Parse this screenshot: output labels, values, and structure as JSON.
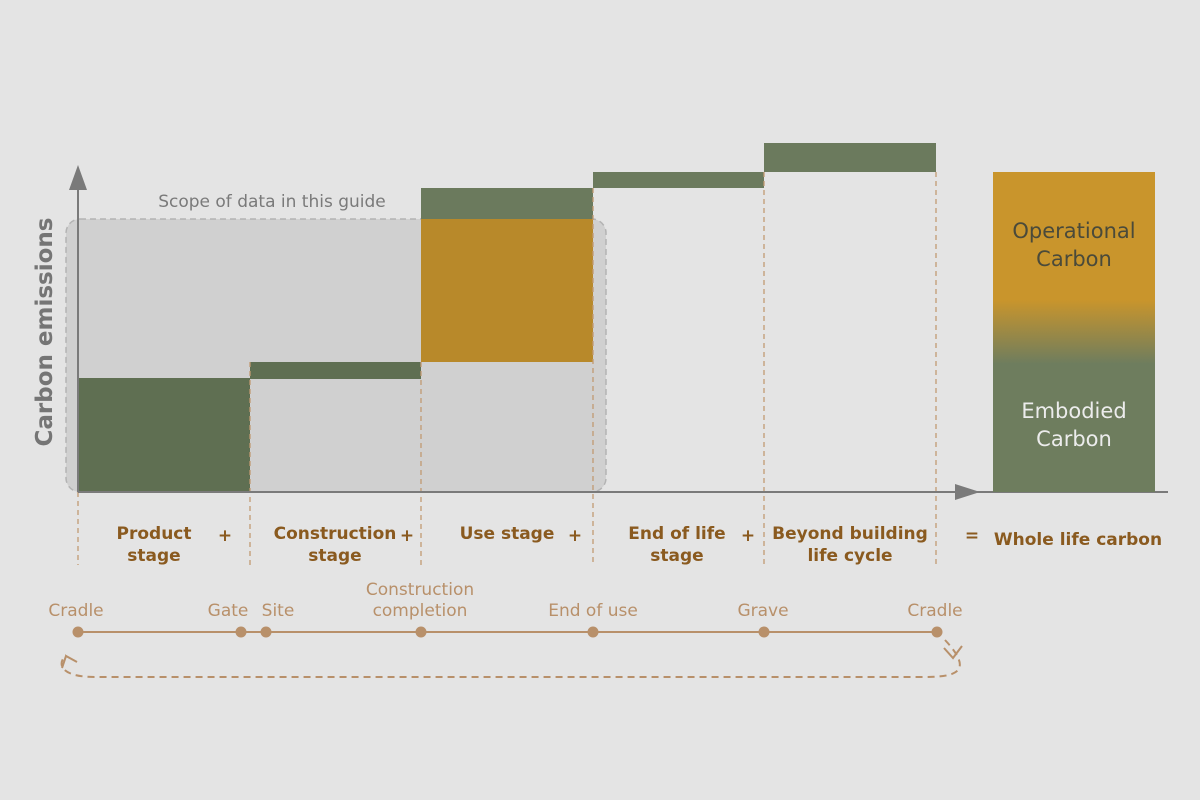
{
  "diagram": {
    "y_axis_label": "Carbon emissions",
    "scope_label": "Scope of data in this guide",
    "stages": [
      {
        "line1": "Product",
        "line2": "stage",
        "operator": "+"
      },
      {
        "line1": "Construction",
        "line2": "stage",
        "operator": "+"
      },
      {
        "line1": "Use stage",
        "line2": "",
        "operator": "+"
      },
      {
        "line1": "End of life",
        "line2": "stage",
        "operator": "+"
      },
      {
        "line1": "Beyond building",
        "line2": "life cycle",
        "operator": "="
      }
    ],
    "total_label": "Whole life carbon",
    "bar": {
      "operational_line1": "Operational",
      "operational_line2": "Carbon",
      "embodied_line1": "Embodied",
      "embodied_line2": "Carbon"
    },
    "milestones": [
      {
        "line1": "Cradle",
        "line2": ""
      },
      {
        "line1": "Gate",
        "line2": ""
      },
      {
        "line1": "Site",
        "line2": ""
      },
      {
        "line1": "Construction",
        "line2": "completion"
      },
      {
        "line1": "End of use",
        "line2": ""
      },
      {
        "line1": "Grave",
        "line2": ""
      },
      {
        "line1": "Cradle",
        "line2": ""
      }
    ],
    "colors": {
      "embodied": "#5f6f52",
      "embodied_light": "#6e7d5e",
      "operational": "#b8892a",
      "operational_light": "#c9952c",
      "scope_fill": "#d0d0d0",
      "accent_text": "#8a5a1f",
      "timeline": "#b8906a"
    }
  }
}
